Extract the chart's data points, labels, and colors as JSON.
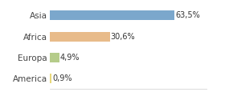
{
  "categories": [
    "Asia",
    "Africa",
    "Europa",
    "America"
  ],
  "values": [
    63.5,
    30.6,
    4.9,
    0.9
  ],
  "labels": [
    "63,5%",
    "30,6%",
    "4,9%",
    "0,9%"
  ],
  "bar_colors": [
    "#7ba7cc",
    "#e8bb8a",
    "#b5cc8a",
    "#e8d87a"
  ],
  "background_color": "#ffffff",
  "xlim": [
    0,
    80
  ],
  "bar_height": 0.45,
  "label_fontsize": 7,
  "ytick_fontsize": 7.5
}
